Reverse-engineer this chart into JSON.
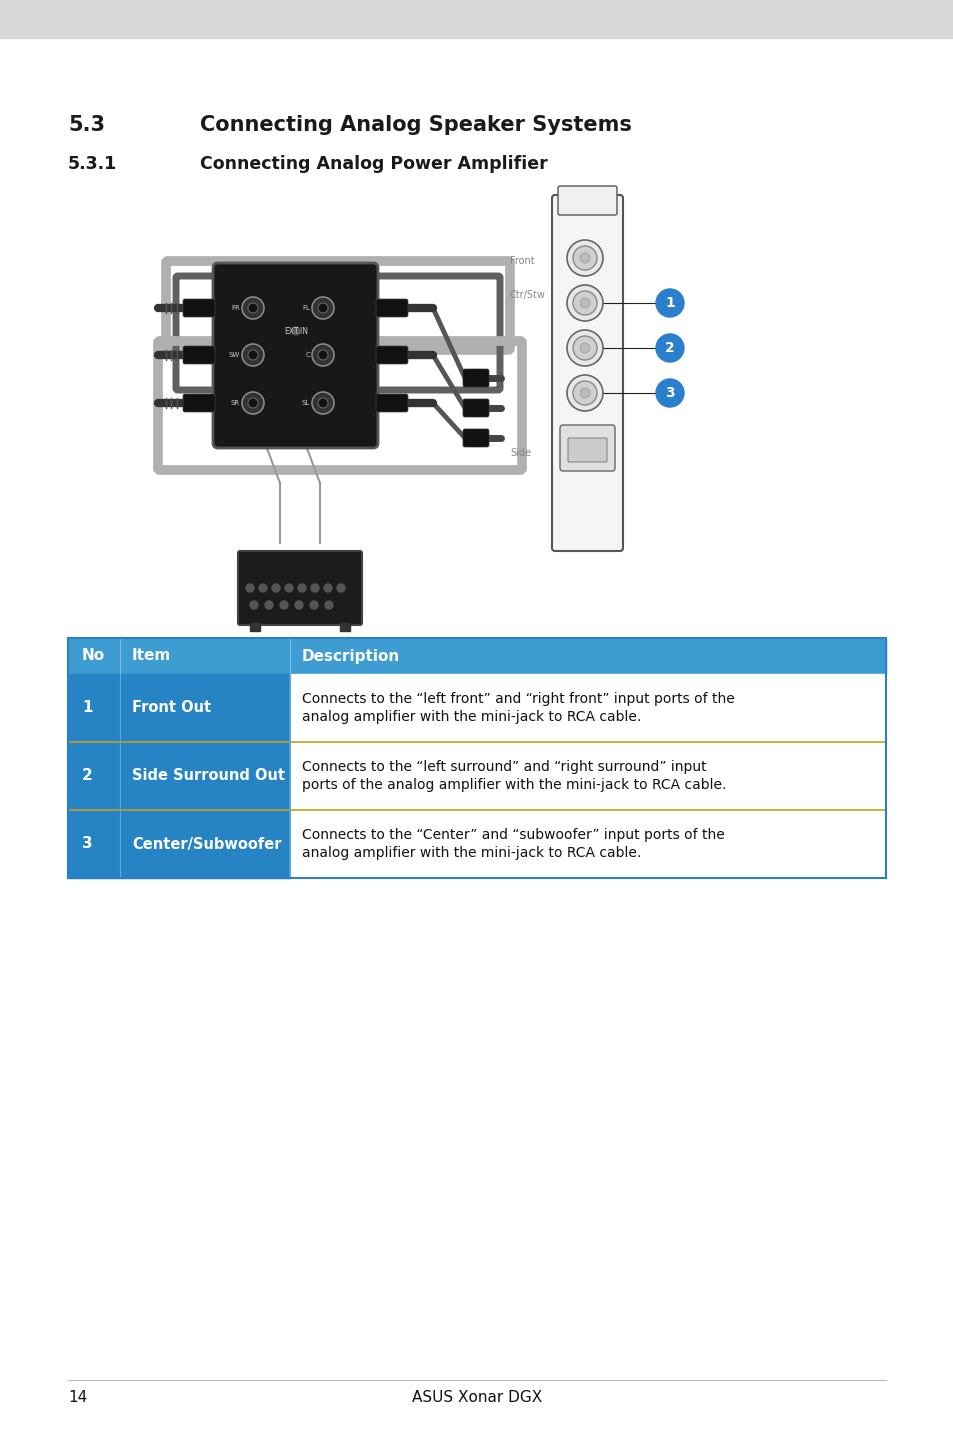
{
  "page_bg": "#ffffff",
  "header_bg": "#d8d8d8",
  "title_53_num": "5.3",
  "title_53_text": "Connecting Analog Speaker Systems",
  "title_531_num": "5.3.1",
  "title_531_text": "Connecting Analog Power Amplifier",
  "table_header_bg": "#3d9cd2",
  "table_row_bg": "#2684c4",
  "table_divider": "#c8a020",
  "headers": [
    "No",
    "Item",
    "Description"
  ],
  "rows": [
    {
      "no": "1",
      "item": "Front Out",
      "desc": "Connects to the “left front” and “right front” input ports of the\nanalog amplifier with the mini-jack to RCA cable."
    },
    {
      "no": "2",
      "item": "Side Surround Out",
      "desc": "Connects to the “left surround” and “right surround” input\nports of the analog amplifier with the mini-jack to RCA cable."
    },
    {
      "no": "3",
      "item": "Center/Subwoofer",
      "desc": "Connects to the “Center” and “subwoofer” input ports of the\nanalog amplifier with the mini-jack to RCA cable."
    }
  ],
  "footer_text": "ASUS Xonar DGX",
  "page_number": "14",
  "circle_color": "#2a7fcc",
  "circle_numbers": [
    "1",
    "2",
    "3"
  ],
  "label_front": "Front",
  "label_ctr": "Ctr/Stw",
  "label_side": "Side"
}
